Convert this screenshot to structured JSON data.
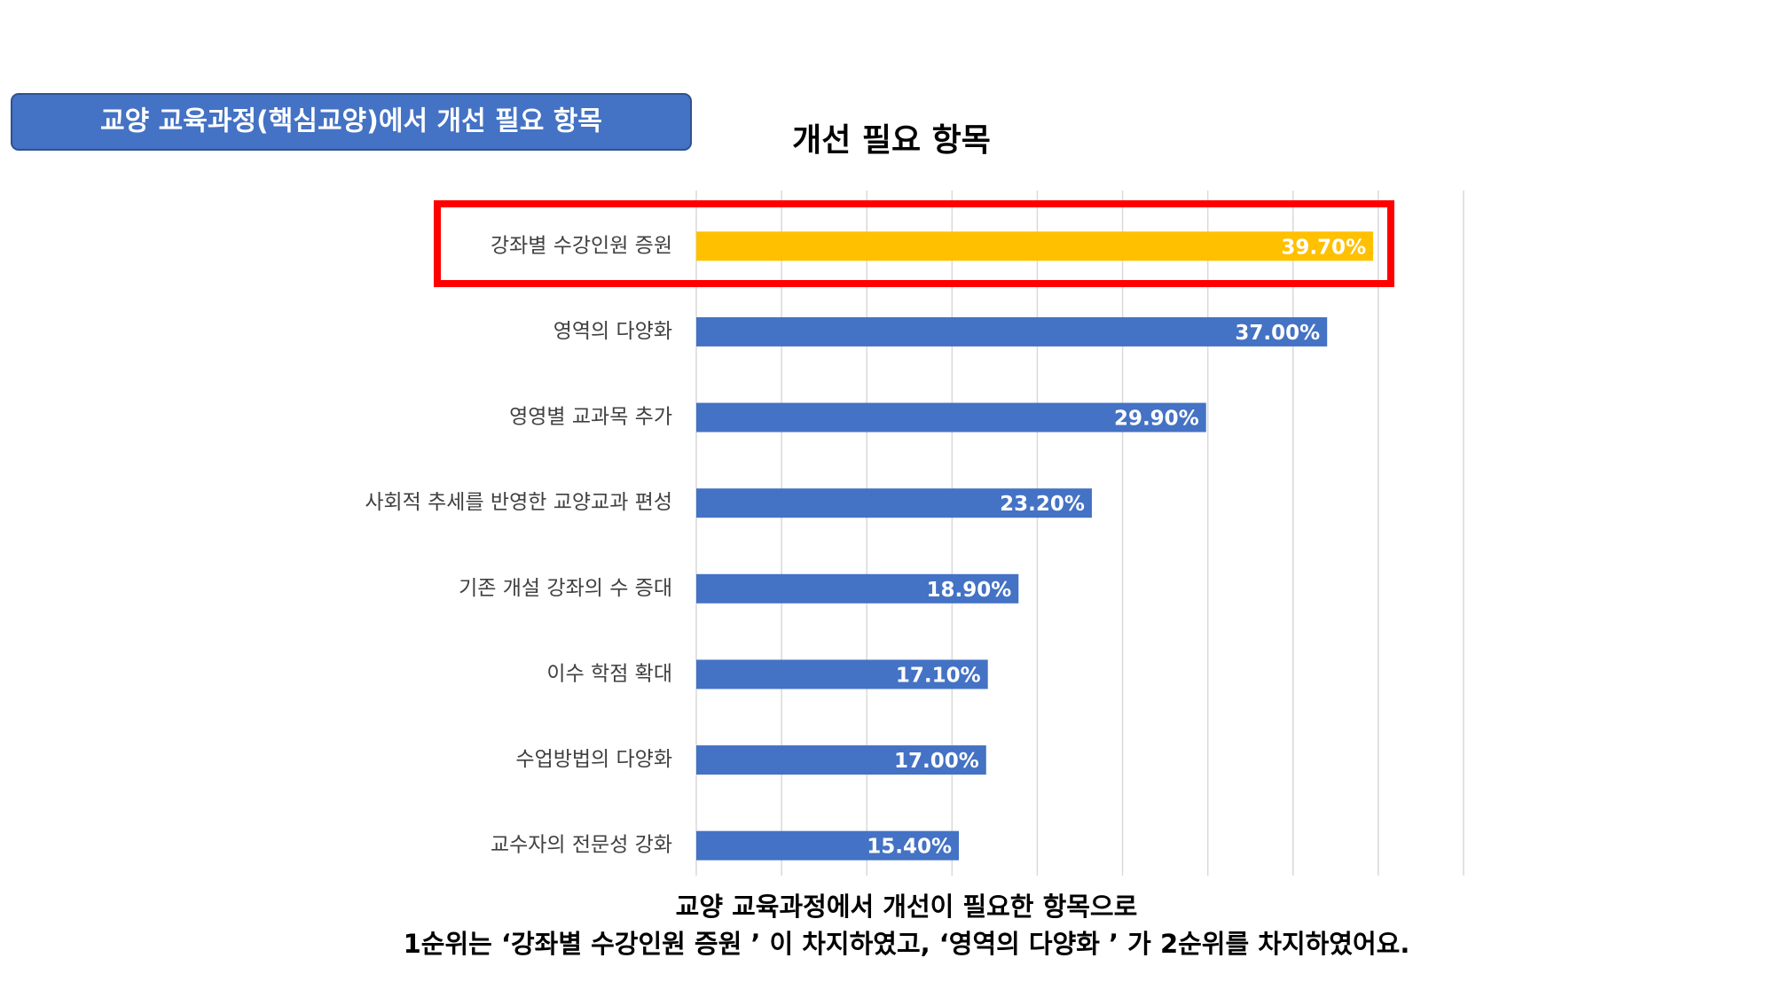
{
  "header": {
    "title": "교양 교육과정(핵심교양)에서 개선 필요 항목"
  },
  "chart_data": {
    "type": "barh",
    "title": "개선 필요 항목",
    "categories": [
      "강좌별 수강인원 증원",
      "영역의 다양화",
      "영영별 교과목 추가",
      "사회적 추세를 반영한 교양교과 편성",
      "기존 개설 강좌의 수 증대",
      "이수 학점 확대",
      "수업방법의 다양화",
      "교수자의 전문성 강화"
    ],
    "values": [
      39.7,
      37.0,
      29.9,
      23.2,
      18.9,
      17.1,
      17.0,
      15.4
    ],
    "value_labels": [
      "39.70%",
      "37.00%",
      "29.90%",
      "23.20%",
      "18.90%",
      "17.10%",
      "17.00%",
      "15.40%"
    ],
    "colors": [
      "#ffc000",
      "#4472c4",
      "#4472c4",
      "#4472c4",
      "#4472c4",
      "#4472c4",
      "#4472c4",
      "#4472c4"
    ],
    "xlim": [
      0,
      45
    ],
    "xticks": [
      0,
      5,
      10,
      15,
      20,
      25,
      30,
      35,
      40,
      45
    ],
    "grid": true
  },
  "footer": {
    "lines": [
      "교양 교육과정에서 개선이 필요한 항목으로",
      "1순위는 ‘강좌별 수강인원 증원  ’ 이 차지하였고, ‘영역의 다양화  ’ 가 2순위를 차지하였어요."
    ]
  }
}
